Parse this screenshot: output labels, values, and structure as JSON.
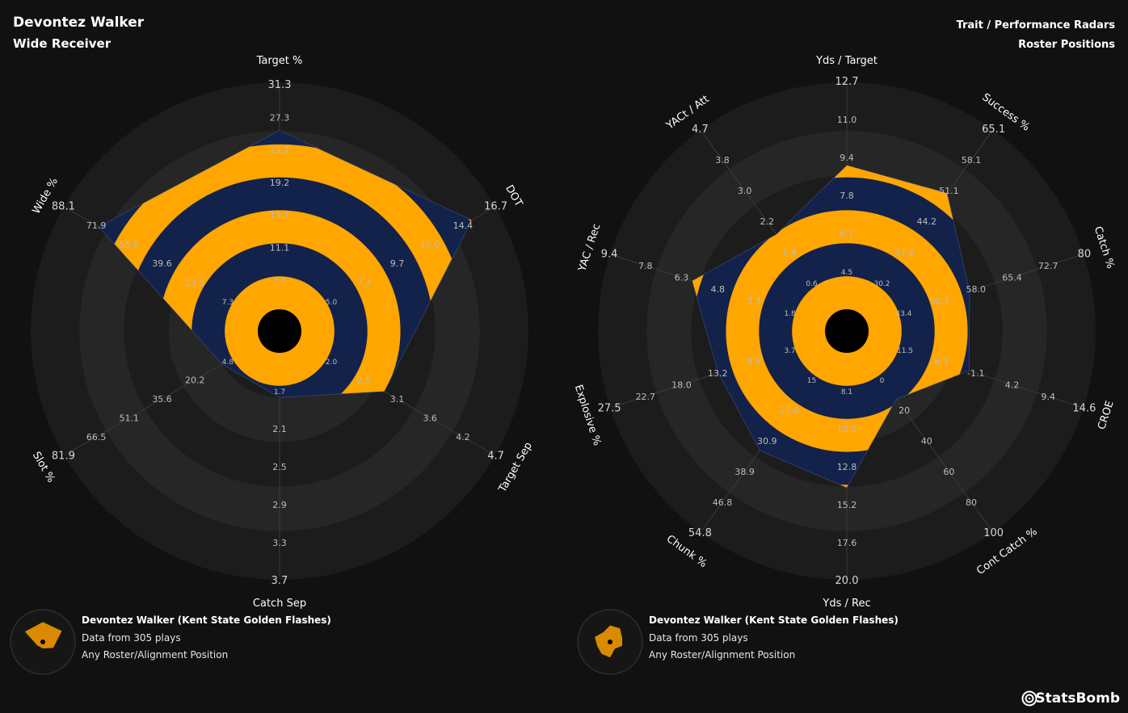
{
  "header": {
    "player_name": "Devontez Walker",
    "player_position": "Wide Receiver",
    "title": "Trait / Performance Radars",
    "subtitle": "Roster Positions"
  },
  "colors": {
    "background": "#111111",
    "ring_dark": "#1c1c1c",
    "ring_light": "#262626",
    "band_orange": "#ffa600",
    "band_navy": "#13224a",
    "legend_shape": "#d98a00"
  },
  "legend": {
    "line1": "Devontez Walker (Kent State Golden Flashes)",
    "line2": "Data from 305 plays",
    "line3": "Any Roster/Alignment Position"
  },
  "brand": {
    "name": "StatsBomb",
    "icon": "statsbomb-logo-icon"
  },
  "chart_data": [
    {
      "type": "radar",
      "axes": [
        {
          "label": "Target %",
          "ticks": [
            "7.0",
            "11.1",
            "15.1",
            "19.2",
            "23.2",
            "27.3",
            "31.3"
          ],
          "value": 26.5
        },
        {
          "label": "DOT",
          "ticks": [
            "5.0",
            "7.3",
            "9.7",
            "12.0",
            "14.4",
            "16.7"
          ],
          "value": 15.5
        },
        {
          "label": "Target Sep",
          "ticks": [
            "2.0",
            "2.5",
            "3.1",
            "3.6",
            "4.2",
            "4.7"
          ],
          "value": 3.2
        },
        {
          "label": "Catch Sep",
          "ticks": [
            "1.7",
            "2.1",
            "2.5",
            "2.9",
            "3.3",
            "3.7"
          ],
          "value": 2.1
        },
        {
          "label": "Slot %",
          "ticks": [
            "4.8",
            "20.2",
            "35.6",
            "51.1",
            "66.5",
            "81.9"
          ],
          "value": 20.2
        },
        {
          "label": "Wide %",
          "ticks": [
            "7.3",
            "23.5",
            "39.6",
            "55.8",
            "71.9",
            "88.1"
          ],
          "value": 75.0
        }
      ],
      "band_count": 7
    },
    {
      "type": "radar",
      "axes": [
        {
          "label": "Yds / Target",
          "ticks": [
            "4.5",
            "6.1",
            "7.8",
            "9.4",
            "11.0",
            "12.7"
          ],
          "value": 9.8
        },
        {
          "label": "Success %",
          "ticks": [
            "30.2",
            "37.2",
            "44.2",
            "51.1",
            "58.1",
            "65.1"
          ],
          "value": 53.5
        },
        {
          "label": "Catch %",
          "ticks": [
            "43.4",
            "50.7",
            "58.0",
            "65.4",
            "72.7",
            "80"
          ],
          "value": 61.0
        },
        {
          "label": "CROE",
          "ticks": [
            "-11.5",
            "-6.3",
            "-1.1",
            "4.2",
            "9.4",
            "14.6"
          ],
          "value": 1.0
        },
        {
          "label": "Cont Catch %",
          "ticks": [
            "0",
            "20",
            "40",
            "60",
            "80",
            "100"
          ],
          "value": 28.0
        },
        {
          "label": "Yds / Rec",
          "ticks": [
            "8.1",
            "10.5",
            "12.8",
            "15.2",
            "17.6",
            "20.0"
          ],
          "value": 15.3
        },
        {
          "label": "Chunk %",
          "ticks": [
            "15",
            "23.0",
            "30.9",
            "38.9",
            "46.8",
            "54.8"
          ],
          "value": 37.5
        },
        {
          "label": "Explosive %",
          "ticks": [
            "3.7",
            "8.5",
            "13.2",
            "18.0",
            "22.7",
            "27.5"
          ],
          "value": 15.8
        },
        {
          "label": "YAC / Rec",
          "ticks": [
            "1.8",
            "3.3",
            "4.8",
            "6.3",
            "7.8",
            "9.4"
          ],
          "value": 6.6
        },
        {
          "label": "YACt / Att",
          "ticks": [
            "0.6",
            "1.4",
            "2.2",
            "3.0",
            "3.8",
            "4.7"
          ],
          "value": 2.4
        }
      ],
      "band_count": 7
    }
  ]
}
